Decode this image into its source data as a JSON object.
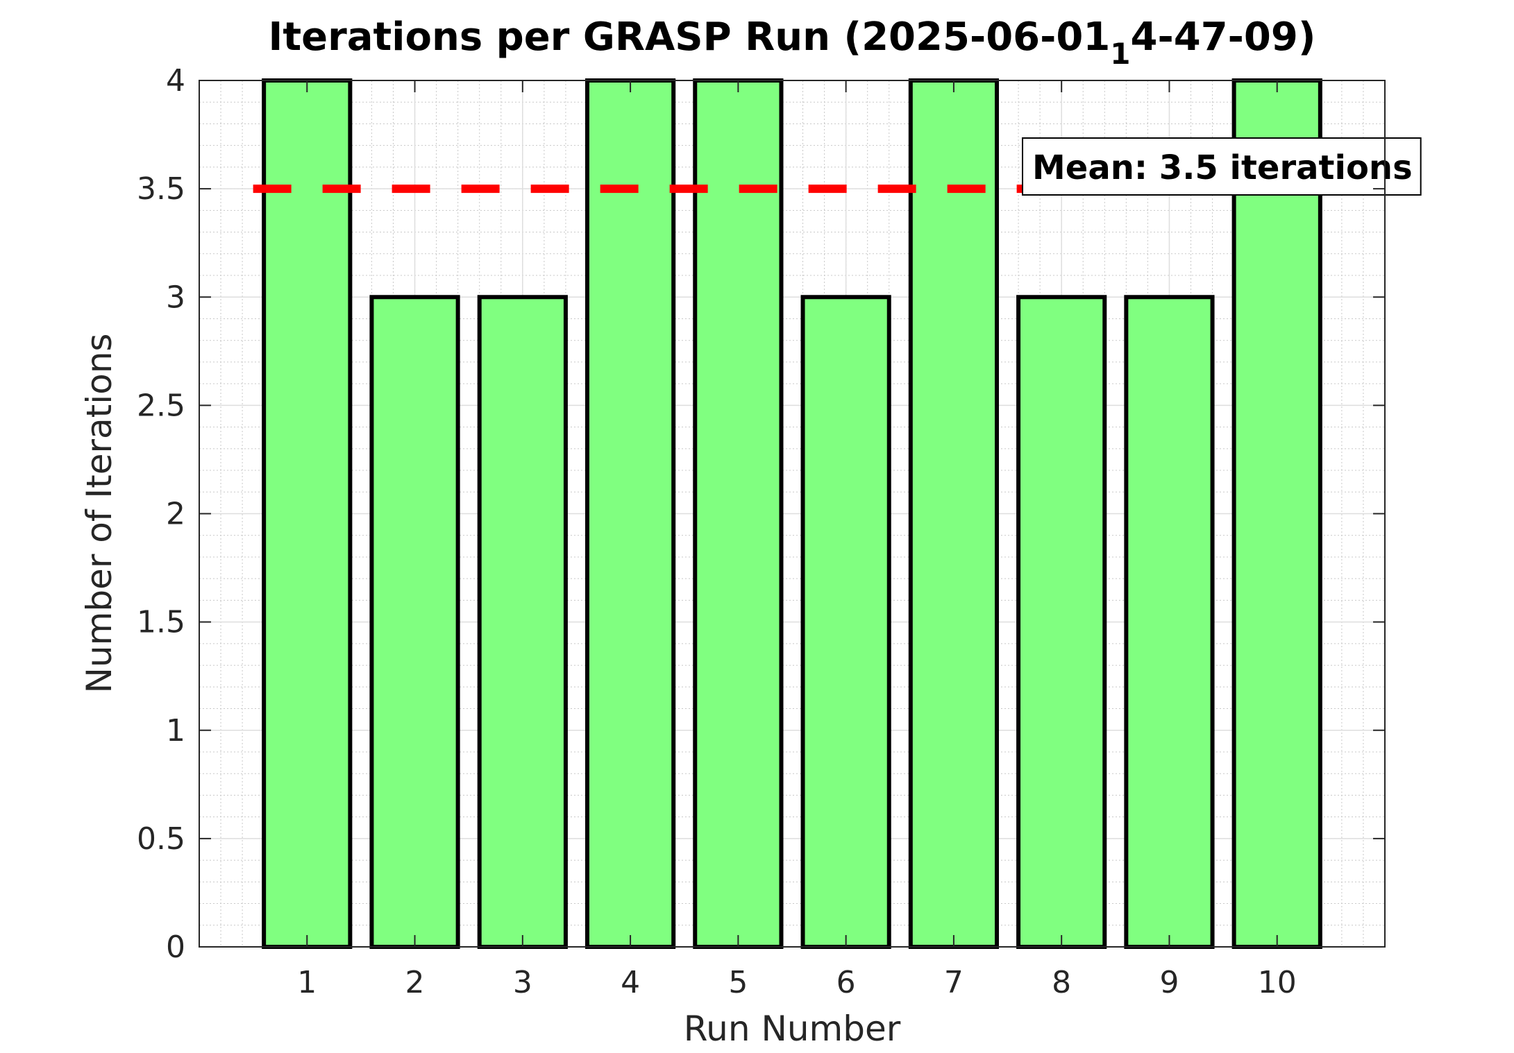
{
  "chart_data": {
    "type": "bar",
    "title_main": "Iterations per GRASP Run (2025-06-01",
    "title_subscript": "1",
    "title_tail": "4-47-09)",
    "xlabel": "Run Number",
    "ylabel": "Number of Iterations",
    "categories": [
      "1",
      "2",
      "3",
      "4",
      "5",
      "6",
      "7",
      "8",
      "9",
      "10"
    ],
    "values": [
      4,
      3,
      3,
      4,
      4,
      3,
      4,
      3,
      3,
      4
    ],
    "xlim": [
      0,
      11
    ],
    "ylim": [
      0,
      4
    ],
    "yticks": [
      "0",
      "0.5",
      "1",
      "1.5",
      "2",
      "2.5",
      "3",
      "3.5",
      "4"
    ],
    "grid": true,
    "minor_grid": true,
    "mean_line": {
      "value": 3.5,
      "color": "#ff0000",
      "style": "dashed"
    },
    "annotation": "Mean: 3.5 iterations",
    "colors": {
      "bar_fill": "#80ff80",
      "bar_edge": "#000000"
    }
  }
}
